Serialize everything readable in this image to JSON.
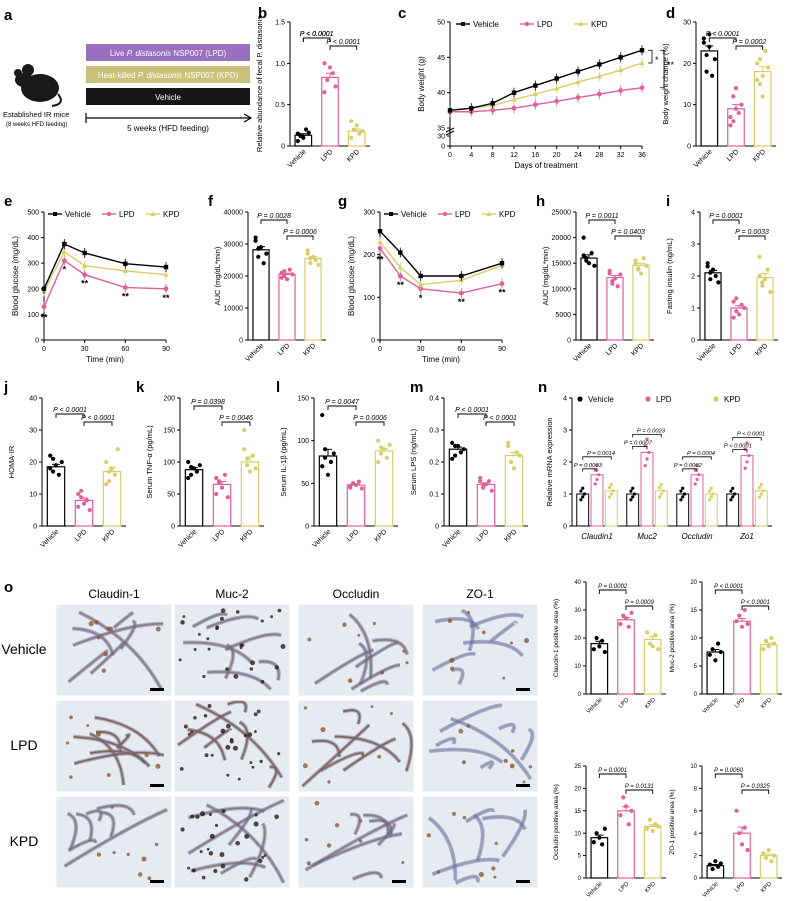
{
  "colors": {
    "vehicle": "#000000",
    "lpd": "#e0609a",
    "kpd": "#d8cd6a",
    "lpd_box": "#9b6fbf",
    "kpd_box": "#c9c178",
    "vehicle_box": "#161616",
    "tissue_bg": "#e6ebf2",
    "tissue_blue": "#6878b4",
    "tissue_brown": "#8a5a32"
  },
  "panel_letters": {
    "a": "a",
    "b": "b",
    "c": "c",
    "d": "d",
    "e": "e",
    "f": "f",
    "g": "g",
    "h": "h",
    "i": "i",
    "j": "j",
    "k": "k",
    "l": "l",
    "m": "m",
    "n": "n",
    "o": "o"
  },
  "group_labels": [
    "Vehicle",
    "LPD",
    "KPD"
  ],
  "legend_labels": {
    "vehicle": "Vehicle",
    "lpd": "LPD",
    "kpd": "KPD"
  },
  "panel_a": {
    "mouse_label": "Established IR mice",
    "mouse_sublabel": "(8 weeks HFD feeding)",
    "box_lpd_prefix": "Live ",
    "box_lpd_species": "P. distasonis",
    "box_lpd_suffix": " NSP007 (LPD)",
    "box_kpd_prefix": "Heat-killed ",
    "box_kpd_species": "P. distasonis",
    "box_kpd_suffix": " NSP007 (KPD)",
    "box_vehicle": "Vehicle",
    "timeline": "5 weeks (HFD feeding)"
  },
  "o_panel": {
    "column_headers": [
      "Claudin-1",
      "Muc-2",
      "Occludin",
      "ZO-1"
    ],
    "row_labels": [
      "Vehicle",
      "LPD",
      "KPD"
    ]
  },
  "chart_data": [
    {
      "id": "b",
      "type": "bar",
      "ylabel": "Relative abundance of fecal P. distasonis",
      "yticks": [
        "0",
        "0.5",
        "1.0",
        "1.5"
      ],
      "ylim": [
        0,
        1.5
      ],
      "categories": [
        "Vehicle",
        "LPD",
        "KPD"
      ],
      "values": [
        0.13,
        0.83,
        0.18
      ],
      "points": [
        [
          0.06,
          0.12,
          0.1,
          0.2,
          0.16,
          0.15
        ],
        [
          0.65,
          0.8,
          0.95,
          0.88,
          0.72,
          1.0
        ],
        [
          0.1,
          0.2,
          0.25,
          0.15,
          0.18,
          0.3
        ]
      ],
      "pvalues": [
        "P < 0.0001",
        "P < 0.0001"
      ]
    },
    {
      "id": "c",
      "type": "line",
      "ylabel": "Body weight (g)",
      "xlabel": "Days of treatment",
      "xticks": [
        "0",
        "4",
        "8",
        "12",
        "16",
        "20",
        "24",
        "28",
        "32",
        "36"
      ],
      "yticks": [
        "0",
        "30",
        "35",
        "40",
        "45",
        "50"
      ],
      "x": [
        0,
        4,
        8,
        12,
        16,
        20,
        24,
        28,
        32,
        36
      ],
      "series": [
        {
          "name": "Vehicle",
          "values": [
            37.5,
            37.8,
            38.5,
            40,
            41,
            42,
            43,
            44,
            45,
            46
          ]
        },
        {
          "name": "LPD",
          "values": [
            37.3,
            37.3,
            37.5,
            37.8,
            38.3,
            38.8,
            39.3,
            39.8,
            40.3,
            40.7
          ]
        },
        {
          "name": "KPD",
          "values": [
            37.5,
            37.8,
            38.2,
            39,
            39.8,
            40.6,
            41.5,
            42.3,
            43.2,
            44.2
          ]
        }
      ],
      "annotations": [
        "*",
        "**"
      ]
    },
    {
      "id": "d",
      "type": "bar",
      "ylabel": "Body weight change (%)",
      "yticks": [
        "0",
        "10",
        "20",
        "30"
      ],
      "ylim": [
        0,
        30
      ],
      "categories": [
        "Vehicle",
        "LPD",
        "KPD"
      ],
      "values": [
        23,
        9,
        18
      ],
      "points": [
        [
          26,
          22,
          24,
          17,
          21,
          25,
          18,
          27
        ],
        [
          7,
          6,
          9,
          8,
          10,
          5,
          12,
          14
        ],
        [
          20,
          15,
          12,
          23,
          19,
          16,
          21,
          17
        ]
      ],
      "pvalues": [
        "P < 0.0001",
        "P = 0.0002"
      ]
    },
    {
      "id": "e",
      "type": "line",
      "ylabel": "Blood glucose (mg/dL)",
      "xlabel": "Time (min)",
      "xticks": [
        "0",
        "30",
        "60",
        "90"
      ],
      "yticks": [
        "0",
        "100",
        "200",
        "300",
        "400",
        "500"
      ],
      "x": [
        0,
        15,
        30,
        60,
        90
      ],
      "series": [
        {
          "name": "Vehicle",
          "values": [
            200,
            375,
            340,
            298,
            285
          ]
        },
        {
          "name": "LPD",
          "values": [
            130,
            310,
            255,
            205,
            200
          ]
        },
        {
          "name": "KPD",
          "values": [
            190,
            345,
            290,
            270,
            255
          ]
        }
      ],
      "annotations": [
        "**",
        "*",
        "**",
        "**",
        "**"
      ]
    },
    {
      "id": "f",
      "type": "bar",
      "ylabel": "AUC (mg/dL*min)",
      "yticks": [
        "0",
        "10000",
        "20000",
        "30000",
        "40000"
      ],
      "ylim": [
        0,
        40000
      ],
      "categories": [
        "Vehicle",
        "LPD",
        "KPD"
      ],
      "values": [
        28200,
        20500,
        25500
      ],
      "points": [
        [
          32000,
          26000,
          29000,
          24000,
          27000,
          31000,
          28500
        ],
        [
          21000,
          20000,
          19000,
          22000,
          20500,
          19500,
          21500
        ],
        [
          27000,
          24000,
          26000,
          25000,
          23500,
          28000,
          25500
        ]
      ],
      "pvalues": [
        "P = 0.0028",
        "P = 0.0006"
      ]
    },
    {
      "id": "g",
      "type": "line",
      "ylabel": "Blood glucose (mg/dL)",
      "xlabel": "Time (min)",
      "xticks": [
        "0",
        "30",
        "60",
        "90"
      ],
      "yticks": [
        "0",
        "100",
        "200",
        "300"
      ],
      "x": [
        0,
        15,
        30,
        60,
        90
      ],
      "series": [
        {
          "name": "Vehicle",
          "values": [
            255,
            205,
            150,
            150,
            180
          ]
        },
        {
          "name": "LPD",
          "values": [
            215,
            150,
            120,
            110,
            132
          ]
        },
        {
          "name": "KPD",
          "values": [
            230,
            170,
            130,
            140,
            175
          ]
        }
      ],
      "annotations": [
        "**",
        "**",
        "*",
        "**",
        "**"
      ]
    },
    {
      "id": "h",
      "type": "bar",
      "ylabel": "AUC (mg/dL*min)",
      "yticks": [
        "0",
        "5000",
        "10000",
        "15000",
        "20000",
        "25000"
      ],
      "ylim": [
        0,
        25000
      ],
      "categories": [
        "Vehicle",
        "LPD",
        "KPD"
      ],
      "values": [
        16000,
        12200,
        14600
      ],
      "points": [
        [
          20000,
          16000,
          15000,
          17000,
          14500,
          16500,
          15500
        ],
        [
          13000,
          11500,
          12000,
          10500,
          12800,
          13500,
          11000
        ],
        [
          15500,
          14000,
          13000,
          16000,
          14500,
          15000,
          13800
        ]
      ],
      "pvalues": [
        "P = 0.0011",
        "P = 0.0403"
      ]
    },
    {
      "id": "i",
      "type": "bar",
      "ylabel": "Fasting insulin (ng/mL)",
      "yticks": [
        "0",
        "1",
        "2",
        "3",
        "4"
      ],
      "ylim": [
        0,
        4
      ],
      "categories": [
        "Vehicle",
        "LPD",
        "KPD"
      ],
      "values": [
        2.1,
        1.0,
        1.95
      ],
      "points": [
        [
          2.4,
          1.9,
          2.2,
          2.0,
          1.8,
          2.3,
          2.1
        ],
        [
          1.2,
          0.9,
          0.8,
          1.1,
          1.0,
          0.7,
          1.3
        ],
        [
          2.6,
          1.7,
          1.9,
          2.2,
          1.5,
          2.0,
          1.8
        ]
      ],
      "pvalues": [
        "P = 0.0001",
        "P = 0.0033"
      ]
    },
    {
      "id": "j",
      "type": "bar",
      "ylabel": "HOMA-IR",
      "yticks": [
        "0",
        "10",
        "20",
        "30",
        "40"
      ],
      "ylim": [
        0,
        40
      ],
      "categories": [
        "Vehicle",
        "LPD",
        "KPD"
      ],
      "values": [
        18.5,
        8,
        17
      ],
      "points": [
        [
          22,
          17,
          19,
          16,
          20,
          18,
          21
        ],
        [
          6,
          9,
          7,
          8,
          5,
          10,
          11
        ],
        [
          20,
          14,
          18,
          16,
          24,
          13,
          17
        ]
      ],
      "pvalues": [
        "P < 0.0001",
        "P < 0.0001"
      ]
    },
    {
      "id": "k",
      "type": "bar",
      "ylabel": "Serum TNF-α (pg/mL)",
      "yticks": [
        "0",
        "50",
        "100",
        "150",
        "200"
      ],
      "ylim": [
        0,
        200
      ],
      "categories": [
        "Vehicle",
        "LPD",
        "KPD"
      ],
      "values": [
        88,
        65,
        100
      ],
      "points": [
        [
          100,
          80,
          90,
          85,
          95,
          75,
          92
        ],
        [
          50,
          70,
          60,
          80,
          45,
          75,
          68
        ],
        [
          150,
          95,
          85,
          110,
          90,
          120,
          105
        ]
      ],
      "pvalues": [
        "P = 0.0398",
        "P = 0.0046"
      ]
    },
    {
      "id": "l",
      "type": "bar",
      "ylabel": "Serum IL-1β (pg/mL)",
      "yticks": [
        "0",
        "50",
        "100",
        "150"
      ],
      "ylim": [
        0,
        150
      ],
      "categories": [
        "Vehicle",
        "LPD",
        "KPD"
      ],
      "values": [
        82,
        48,
        88
      ],
      "points": [
        [
          130,
          90,
          60,
          75,
          85,
          70,
          80
        ],
        [
          45,
          50,
          48,
          52,
          44,
          47,
          50
        ],
        [
          100,
          85,
          90,
          80,
          95,
          75,
          92
        ]
      ],
      "pvalues": [
        "P = 0.0047",
        "P = 0.0006"
      ]
    },
    {
      "id": "m",
      "type": "bar",
      "ylabel": "Serum LPS (ng/mL)",
      "yticks": [
        "0",
        "0.1",
        "0.2",
        "0.3",
        "0.4"
      ],
      "ylim": [
        0,
        0.4
      ],
      "categories": [
        "Vehicle",
        "LPD",
        "KPD"
      ],
      "values": [
        0.24,
        0.13,
        0.22
      ],
      "points": [
        [
          0.26,
          0.22,
          0.25,
          0.23,
          0.24,
          0.21,
          0.25
        ],
        [
          0.15,
          0.12,
          0.13,
          0.14,
          0.11,
          0.14,
          0.13
        ],
        [
          0.26,
          0.2,
          0.18,
          0.23,
          0.22,
          0.25,
          0.2
        ]
      ],
      "pvalues": [
        "P < 0.0001",
        "P < 0.0001"
      ]
    },
    {
      "id": "n",
      "type": "bar",
      "ylabel": "Relative mRNA expression",
      "yticks": [
        "0",
        "1",
        "2",
        "3",
        "4"
      ],
      "ylim": [
        0,
        4
      ],
      "categories": [
        "Claudin1",
        "Muc2",
        "Occludin",
        "Zo1"
      ],
      "series": [
        {
          "name": "Vehicle",
          "values": [
            1.0,
            1.0,
            1.0,
            1.0
          ]
        },
        {
          "name": "LPD",
          "values": [
            1.6,
            2.3,
            1.6,
            2.2
          ]
        },
        {
          "name": "KPD",
          "values": [
            1.1,
            1.1,
            1.0,
            1.1
          ]
        }
      ],
      "pvalues": [
        "P = 0.0014",
        "P = 0.0003",
        "P = 0.0023",
        "P = 0.0007",
        "P = 0.0004",
        "P = 0.0002",
        "P < 0.0001",
        "P < 0.0001"
      ]
    },
    {
      "id": "o1",
      "type": "bar",
      "ylabel": "Claudin-1 positive area (%)",
      "yticks": [
        "0",
        "10",
        "20",
        "30",
        "40"
      ],
      "ylim": [
        0,
        40
      ],
      "categories": [
        "Vehicle",
        "LPD",
        "KPD"
      ],
      "values": [
        18,
        26.5,
        19.5
      ],
      "points": [
        [
          16,
          20,
          17,
          19,
          15
        ],
        [
          25,
          28,
          27,
          24,
          29
        ],
        [
          22,
          18,
          17,
          21,
          16
        ]
      ],
      "pvalues": [
        "P = 0.0002",
        "P = 0.0009"
      ]
    },
    {
      "id": "o2",
      "type": "bar",
      "ylabel": "Muc-2 positive area (%)",
      "yticks": [
        "0",
        "5",
        "10",
        "15",
        "20"
      ],
      "ylim": [
        0,
        20
      ],
      "categories": [
        "Vehicle",
        "LPD",
        "KPD"
      ],
      "values": [
        7.5,
        13,
        8.8
      ],
      "points": [
        [
          7,
          8,
          6,
          9,
          7.5
        ],
        [
          13,
          14,
          12,
          15,
          12.5
        ],
        [
          8,
          9.5,
          8.5,
          10,
          9
        ]
      ],
      "pvalues": [
        "P < 0.0001",
        "P < 0.0001"
      ]
    },
    {
      "id": "o3",
      "type": "bar",
      "ylabel": "Occludin positive area (%)",
      "yticks": [
        "0",
        "5",
        "10",
        "15",
        "20",
        "25"
      ],
      "ylim": [
        0,
        25
      ],
      "categories": [
        "Vehicle",
        "LPD",
        "KPD"
      ],
      "values": [
        9,
        15,
        11.5
      ],
      "points": [
        [
          8,
          10,
          9,
          7.5,
          11
        ],
        [
          14,
          18,
          16,
          12,
          15
        ],
        [
          11,
          13,
          10.5,
          12,
          11.5
        ]
      ],
      "pvalues": [
        "P = 0.0001",
        "P = 0.0131"
      ]
    },
    {
      "id": "o4",
      "type": "bar",
      "ylabel": "ZO-1 positive area (%)",
      "yticks": [
        "0",
        "2",
        "4",
        "6",
        "8",
        "10"
      ],
      "ylim": [
        0,
        10
      ],
      "categories": [
        "Vehicle",
        "LPD",
        "KPD"
      ],
      "values": [
        1.1,
        4,
        2
      ],
      "points": [
        [
          1.2,
          0.8,
          1.5,
          1.0,
          1.3
        ],
        [
          6,
          4,
          3,
          4.5,
          2.5
        ],
        [
          2.2,
          1.8,
          2.5,
          1.5,
          2.0
        ]
      ],
      "pvalues": [
        "P = 0.0060",
        "P = 0.0325"
      ]
    }
  ]
}
